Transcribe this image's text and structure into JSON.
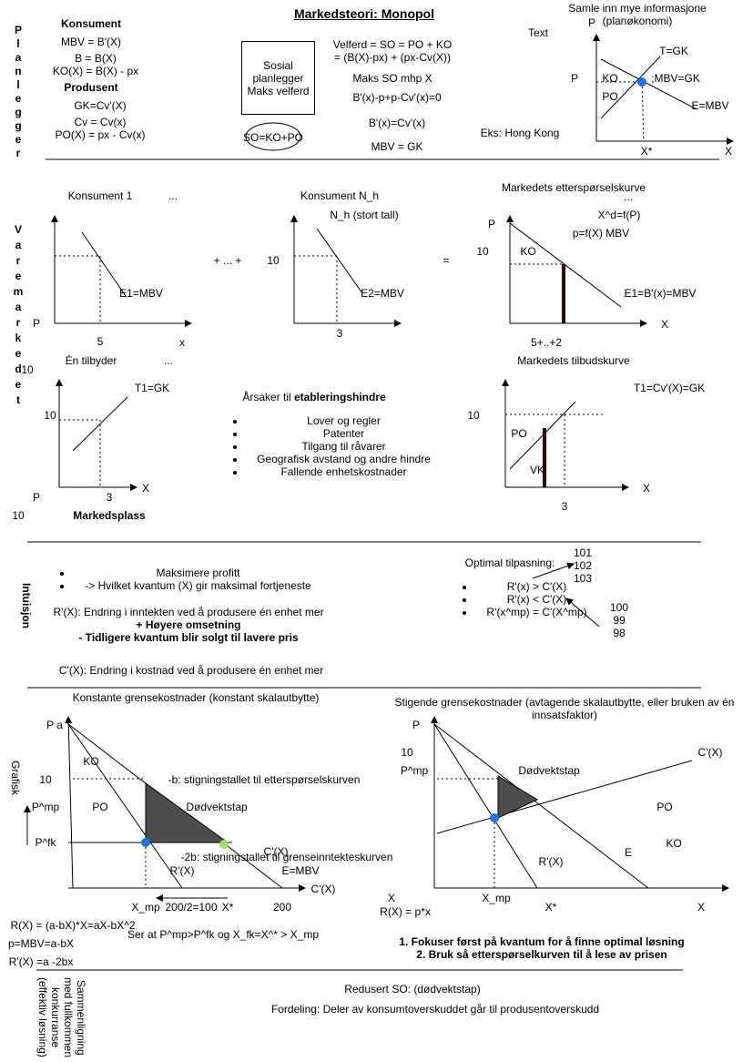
{
  "title": "Markedsteori: Monopol",
  "planner": {
    "side_label": "Planlegger",
    "consumer": {
      "heading": "Konsument",
      "lines": [
        "MBV = B'(X)",
        "B = B(X)",
        "KO(X) = B(X) - px"
      ]
    },
    "producer": {
      "heading": "Produsent",
      "lines": [
        "GK=Cv'(X)",
        "Cv = Cv(x)",
        "PO(X) = px - Cv(x)"
      ]
    },
    "box": [
      "Sosial",
      "planlegger",
      "Maks velferd"
    ],
    "ellipse": "SO=KO+PO",
    "derivation": [
      "Velferd = SO  = PO + KO",
      "= (B(X)-px) + (px-Cv(X))",
      "Maks SO mhp X",
      "B'(x)-p+p-Cv'(x)=0",
      "B'(x)=Cv'(x)",
      "MBV = GK"
    ],
    "placeholder": "Text",
    "example": "Eks: Hong Kong",
    "note": [
      "Samle inn mye informasjone",
      "(planøkonomi)"
    ],
    "chart": {
      "y_axis": "P",
      "x_axis": "X",
      "supply": "T=GK",
      "price": "P",
      "ko": "KO",
      "mbv_gk": ";MBV=GK",
      "po": "PO",
      "demand": "E=MBV",
      "x_star": "X*"
    }
  },
  "goods_market": {
    "side_label": "Varemarkedet",
    "consumer1": {
      "title": "Konsument 1",
      "dots": "...",
      "curve": "E1=MBV",
      "y_axis": "P",
      "x_value": "5",
      "x_axis": "x"
    },
    "plus": "+ ... +",
    "consumerN": {
      "title": "Konsument N_h",
      "subtitle": "N_h (stort tall)",
      "price": "10",
      "curve": "E2=MBV",
      "x_value": "3"
    },
    "equals": "=",
    "market_demand": {
      "title": "Markedets etterspørselskurve",
      "dots": "...",
      "formula1": "X^d=f(P)",
      "formula2": "p=f(X) MBV",
      "y_axis": "P",
      "price": "10",
      "ko": "KO",
      "curve": "E1=B'(x)=MBV",
      "x_axis": "X",
      "x_value": "5+..+2"
    },
    "supplier": {
      "title": "Én tilbyder",
      "dots": "...",
      "side_value": "10",
      "curve": "T1=GK",
      "price": "10",
      "y_axis": "P",
      "x_value": "3",
      "x_axis": "X"
    },
    "reasons": {
      "heading_prefix": "Årsaker til",
      "heading_bold": "etableringshindre",
      "items": [
        "Lover og regler",
        "Patenter",
        "Tilgang til råvarer",
        "Geografisk avstand og andre hindre",
        "Fallende enhetskostnader"
      ]
    },
    "market_supply": {
      "title": "Markedets tilbudskurve",
      "curve": "T1=Cv'(X)=GK",
      "price": "10",
      "po": "PO",
      "vk": "VK",
      "x_axis": "X",
      "x_value": "3"
    },
    "footer_value": "10",
    "marketplace": "Markedsplass"
  },
  "intuition": {
    "side_label": "Intuisjon",
    "bullets": [
      "Maksimere profitt",
      "-> Hvilket kvantum (X) gir maksimal fortjeneste"
    ],
    "revenue": [
      "R'(X): Endring i inntekten ved å produsere én enhet mer",
      "+ Høyere omsetning",
      "- Tidligere kvantum blir solgt til lavere pris"
    ],
    "cost": "C'(X): Endring i kostnad ved å produsere én enhet mer",
    "optimal": {
      "heading": "Optimal tilpasning:",
      "above": [
        "101",
        "102",
        "103"
      ],
      "conditions": [
        "R'(x) > C'(X)",
        "R'(x) < C'(X)",
        "R'(x^mp) = C'(X^mp)"
      ],
      "below": [
        "100",
        "99",
        "98"
      ]
    }
  },
  "graphic": {
    "side_label": "Grafisk",
    "constant": {
      "title": "Konstante grensekostnader (konstant skalautbytte)",
      "y_axis": "P a",
      "ko": "KO",
      "price": "10",
      "p_mp": "P^mp",
      "po": "PO",
      "deadweight": "Dødvektstap",
      "p_fk": "P^fk",
      "slope_demand": "-b: stigningstallet til etterspørselskurven",
      "mc": "C'(X)",
      "slope_mr": "-2b: stigningstallet til grenseinntekteskurven",
      "mr": "R'(X)",
      "demand": "E=MBV",
      "mc_axis": "C'(X)",
      "x_mp": "X_mp",
      "half": "200/2=100",
      "x_star": "X*",
      "x_max": "200",
      "formulas": [
        "R(X) = (a-bX)*X=aX-bX^2",
        "p=MBV=a-bX",
        "R'(X) =a -2bx"
      ],
      "conclusion": "Ser at P^mp>P^fk og X_fk=X^* > X_mp"
    },
    "rising": {
      "title": "Stigende grensekostnader (avtagende skalautbytte, eller bruken av én innsatsfaktor)",
      "y_axis": "P",
      "price": "10",
      "p_mp": "P^mp",
      "deadweight": "Dødvektstap",
      "mc": "C'(X)",
      "po": "PO",
      "ko": "KO",
      "demand": "E",
      "mr": "R'(X)",
      "x_left": "X",
      "x_mp": "X_mp",
      "x_star": "X*",
      "x_axis": "X",
      "revenue": "R(X) = p*x",
      "steps": [
        "1. Fokuser først på kvantum for å finne optimal løsning",
        "2. Bruk så etterspørselkurven til å lese av prisen"
      ]
    }
  },
  "comparison": {
    "side_label": "Sammenligning med fullkommen konkurranse (effektiv løsning)",
    "lines": [
      "Redusert SO: (dødvektstap)",
      "Fordeling: Deler av konsumtoverskuddet går til produsentoverskudd"
    ]
  }
}
